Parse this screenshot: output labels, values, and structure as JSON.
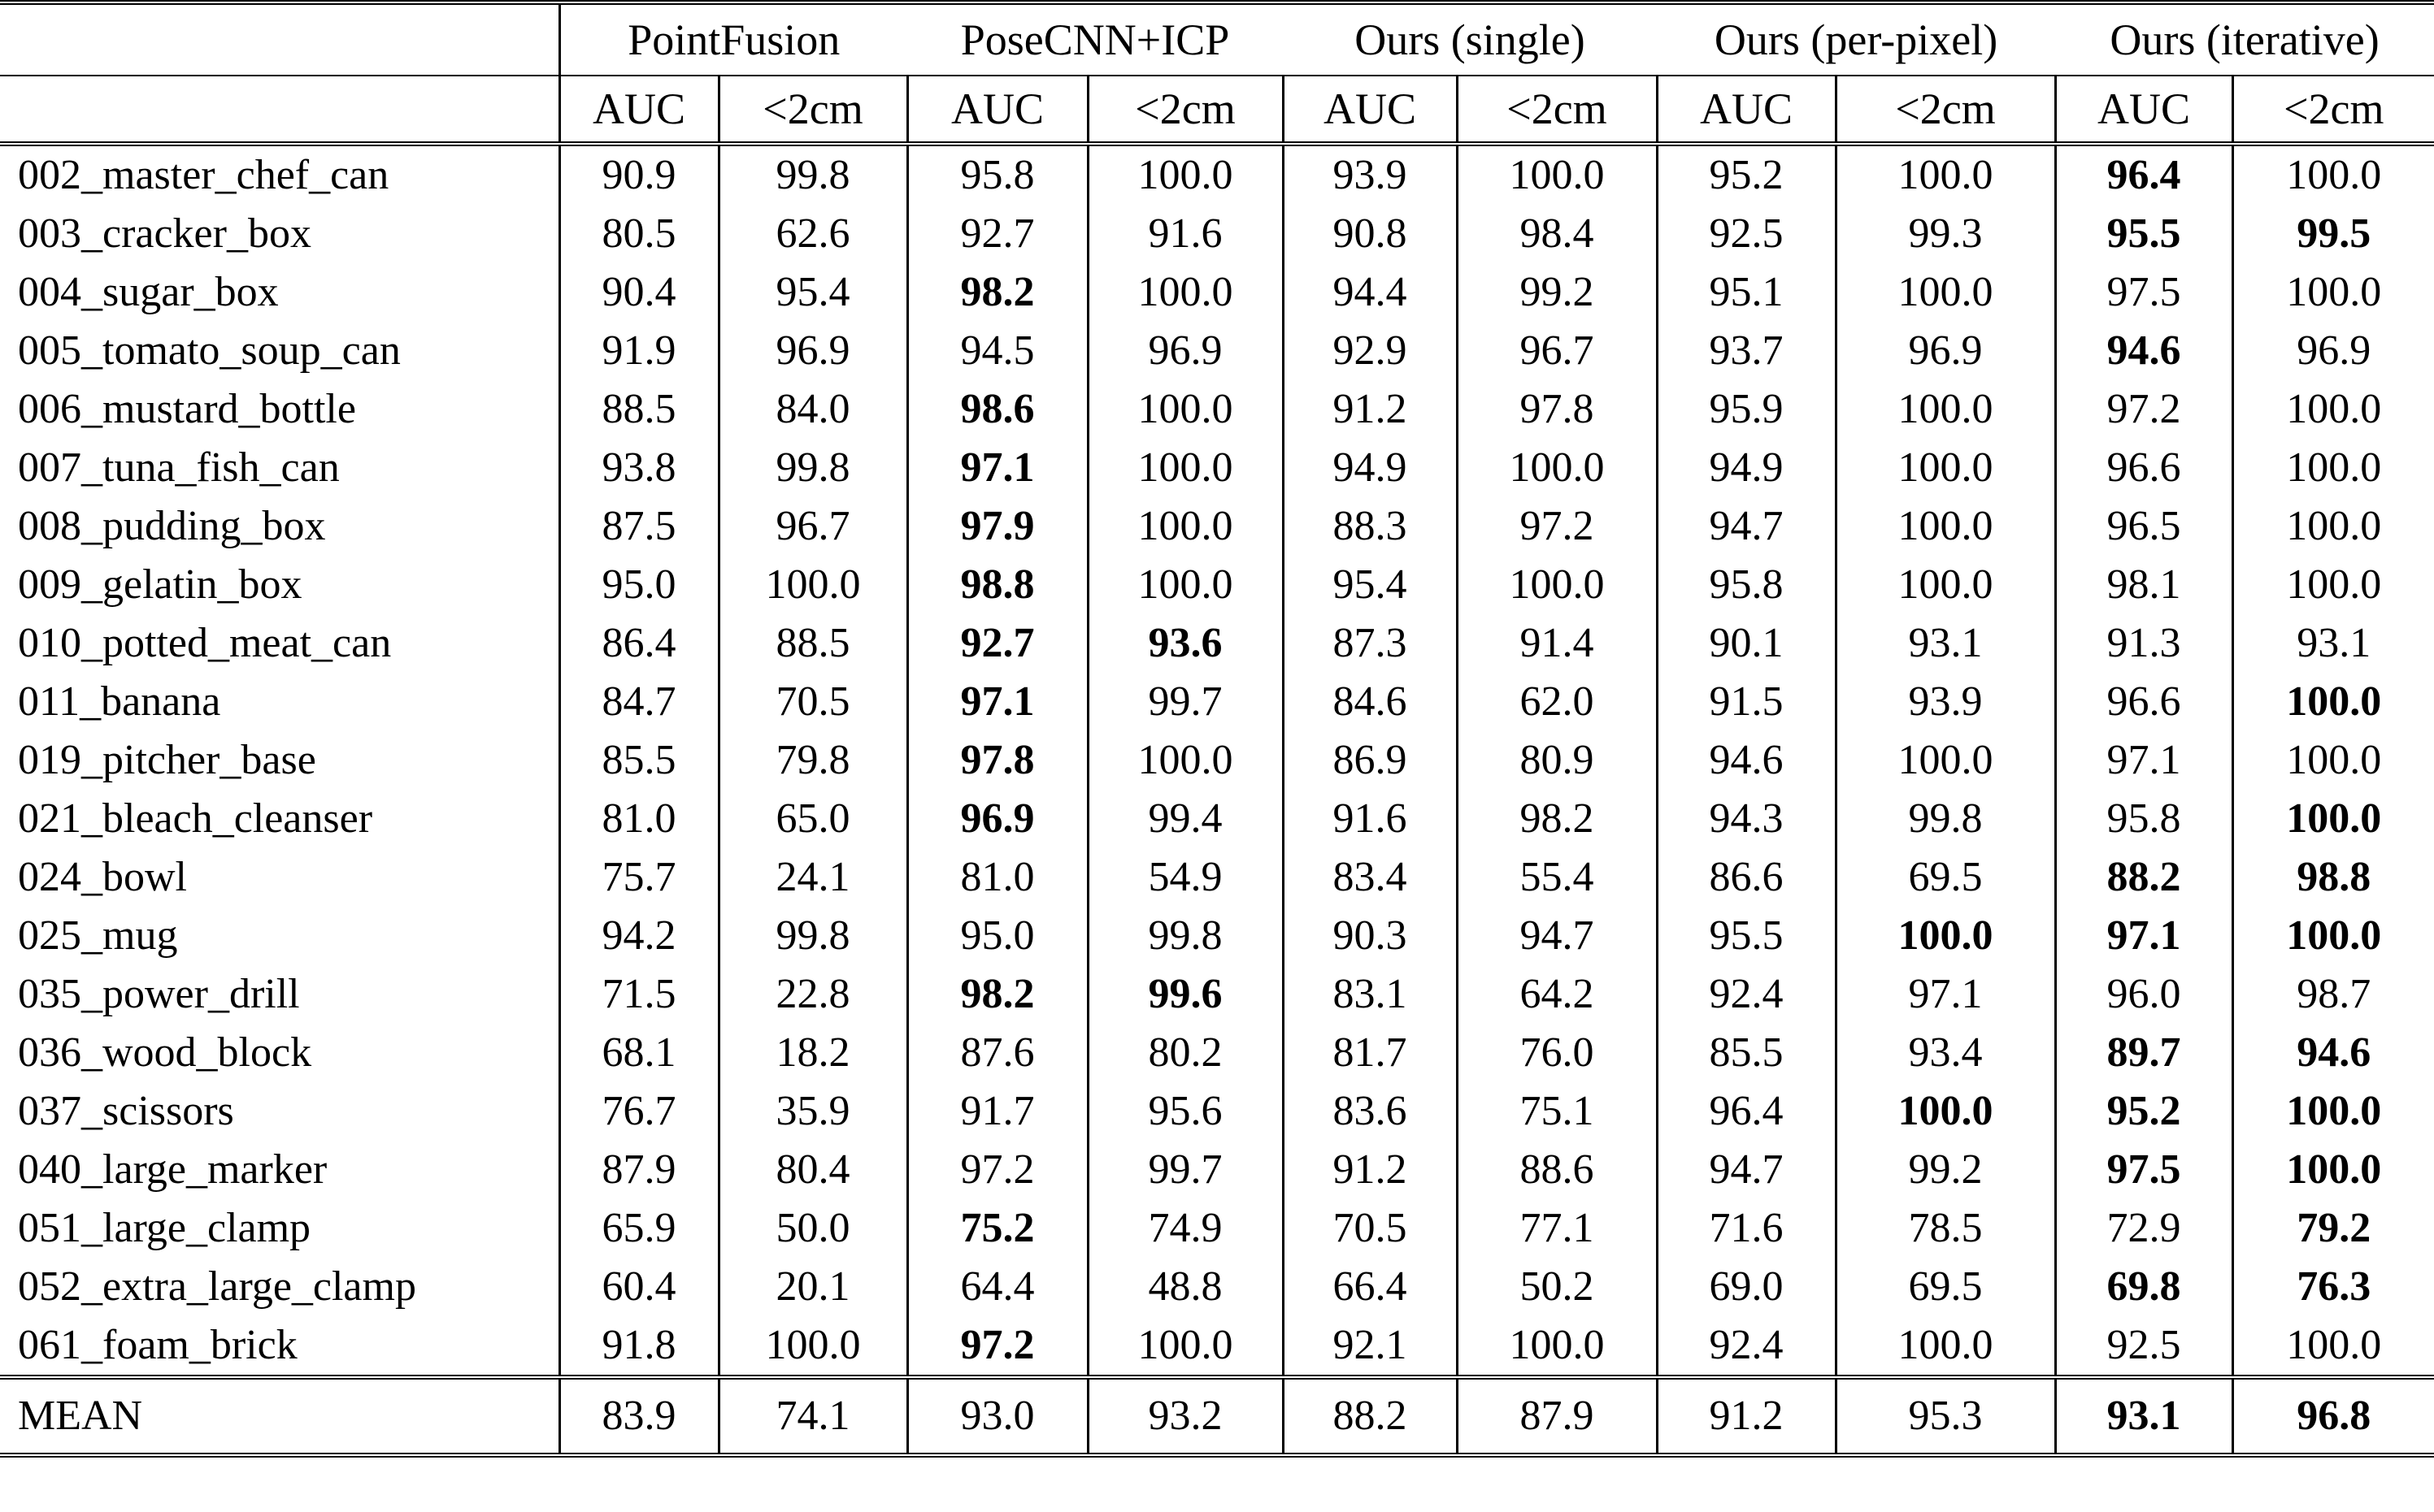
{
  "colors": {
    "text": "#000000",
    "background": "#ffffff",
    "border": "#000000"
  },
  "table": {
    "groups": [
      "PointFusion",
      "PoseCNN+ICP",
      "Ours (single)",
      "Ours (per-pixel)",
      "Ours (iterative)"
    ],
    "sub_headers": [
      "AUC",
      "<2cm",
      "AUC",
      "<2cm",
      "AUC",
      "<2cm",
      "AUC",
      "<2cm",
      "AUC",
      "<2cm"
    ],
    "rows": [
      {
        "name": "002_master_chef_can",
        "values": [
          "90.9",
          "99.8",
          "95.8",
          "100.0",
          "93.9",
          "100.0",
          "95.2",
          "100.0",
          "96.4",
          "100.0"
        ],
        "bold": [
          8
        ]
      },
      {
        "name": "003_cracker_box",
        "values": [
          "80.5",
          "62.6",
          "92.7",
          "91.6",
          "90.8",
          "98.4",
          "92.5",
          "99.3",
          "95.5",
          "99.5"
        ],
        "bold": [
          8,
          9
        ]
      },
      {
        "name": "004_sugar_box",
        "values": [
          "90.4",
          "95.4",
          "98.2",
          "100.0",
          "94.4",
          "99.2",
          "95.1",
          "100.0",
          "97.5",
          "100.0"
        ],
        "bold": [
          2
        ]
      },
      {
        "name": "005_tomato_soup_can",
        "values": [
          "91.9",
          "96.9",
          "94.5",
          "96.9",
          "92.9",
          "96.7",
          "93.7",
          "96.9",
          "94.6",
          "96.9"
        ],
        "bold": [
          8
        ]
      },
      {
        "name": "006_mustard_bottle",
        "values": [
          "88.5",
          "84.0",
          "98.6",
          "100.0",
          "91.2",
          "97.8",
          "95.9",
          "100.0",
          "97.2",
          "100.0"
        ],
        "bold": [
          2
        ]
      },
      {
        "name": "007_tuna_fish_can",
        "values": [
          "93.8",
          "99.8",
          "97.1",
          "100.0",
          "94.9",
          "100.0",
          "94.9",
          "100.0",
          "96.6",
          "100.0"
        ],
        "bold": [
          2
        ]
      },
      {
        "name": "008_pudding_box",
        "values": [
          "87.5",
          "96.7",
          "97.9",
          "100.0",
          "88.3",
          "97.2",
          "94.7",
          "100.0",
          "96.5",
          "100.0"
        ],
        "bold": [
          2
        ]
      },
      {
        "name": "009_gelatin_box",
        "values": [
          "95.0",
          "100.0",
          "98.8",
          "100.0",
          "95.4",
          "100.0",
          "95.8",
          "100.0",
          "98.1",
          "100.0"
        ],
        "bold": [
          2
        ]
      },
      {
        "name": "010_potted_meat_can",
        "values": [
          "86.4",
          "88.5",
          "92.7",
          "93.6",
          "87.3",
          "91.4",
          "90.1",
          "93.1",
          "91.3",
          "93.1"
        ],
        "bold": [
          2,
          3
        ]
      },
      {
        "name": "011_banana",
        "values": [
          "84.7",
          "70.5",
          "97.1",
          "99.7",
          "84.6",
          "62.0",
          "91.5",
          "93.9",
          "96.6",
          "100.0"
        ],
        "bold": [
          2,
          9
        ]
      },
      {
        "name": "019_pitcher_base",
        "values": [
          "85.5",
          "79.8",
          "97.8",
          "100.0",
          "86.9",
          "80.9",
          "94.6",
          "100.0",
          "97.1",
          "100.0"
        ],
        "bold": [
          2
        ]
      },
      {
        "name": "021_bleach_cleanser",
        "values": [
          "81.0",
          "65.0",
          "96.9",
          "99.4",
          "91.6",
          "98.2",
          "94.3",
          "99.8",
          "95.8",
          "100.0"
        ],
        "bold": [
          2,
          9
        ]
      },
      {
        "name": "024_bowl",
        "values": [
          "75.7",
          "24.1",
          "81.0",
          "54.9",
          "83.4",
          "55.4",
          "86.6",
          "69.5",
          "88.2",
          "98.8"
        ],
        "bold": [
          8,
          9
        ]
      },
      {
        "name": "025_mug",
        "values": [
          "94.2",
          "99.8",
          "95.0",
          "99.8",
          "90.3",
          "94.7",
          "95.5",
          "100.0",
          "97.1",
          "100.0"
        ],
        "bold": [
          7,
          8,
          9
        ]
      },
      {
        "name": "035_power_drill",
        "values": [
          "71.5",
          "22.8",
          "98.2",
          "99.6",
          "83.1",
          "64.2",
          "92.4",
          "97.1",
          "96.0",
          "98.7"
        ],
        "bold": [
          2,
          3
        ]
      },
      {
        "name": "036_wood_block",
        "values": [
          "68.1",
          "18.2",
          "87.6",
          "80.2",
          "81.7",
          "76.0",
          "85.5",
          "93.4",
          "89.7",
          "94.6"
        ],
        "bold": [
          8,
          9
        ]
      },
      {
        "name": "037_scissors",
        "values": [
          "76.7",
          "35.9",
          "91.7",
          "95.6",
          "83.6",
          "75.1",
          "96.4",
          "100.0",
          "95.2",
          "100.0"
        ],
        "bold": [
          7,
          8,
          9
        ]
      },
      {
        "name": "040_large_marker",
        "values": [
          "87.9",
          "80.4",
          "97.2",
          "99.7",
          "91.2",
          "88.6",
          "94.7",
          "99.2",
          "97.5",
          "100.0"
        ],
        "bold": [
          8,
          9
        ]
      },
      {
        "name": "051_large_clamp",
        "values": [
          "65.9",
          "50.0",
          "75.2",
          "74.9",
          "70.5",
          "77.1",
          "71.6",
          "78.5",
          "72.9",
          "79.2"
        ],
        "bold": [
          2,
          9
        ]
      },
      {
        "name": "052_extra_large_clamp",
        "values": [
          "60.4",
          "20.1",
          "64.4",
          "48.8",
          "66.4",
          "50.2",
          "69.0",
          "69.5",
          "69.8",
          "76.3"
        ],
        "bold": [
          8,
          9
        ]
      },
      {
        "name": "061_foam_brick",
        "values": [
          "91.8",
          "100.0",
          "97.2",
          "100.0",
          "92.1",
          "100.0",
          "92.4",
          "100.0",
          "92.5",
          "100.0"
        ],
        "bold": [
          2
        ]
      }
    ],
    "mean_row": {
      "label": "MEAN",
      "values": [
        "83.9",
        "74.1",
        "93.0",
        "93.2",
        "88.2",
        "87.9",
        "91.2",
        "95.3",
        "93.1",
        "96.8"
      ],
      "bold": [
        8,
        9
      ]
    }
  }
}
